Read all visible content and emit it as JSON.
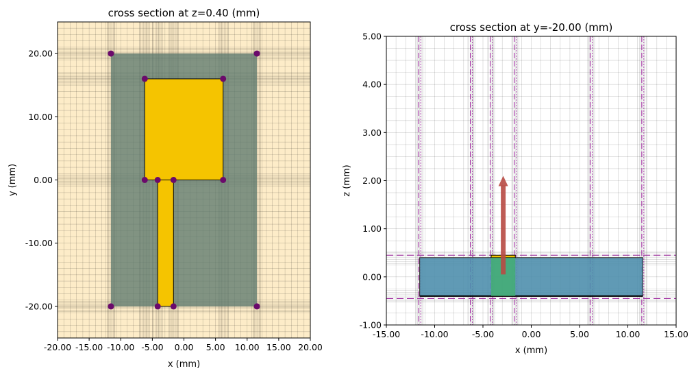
{
  "colors": {
    "substrate_bg": "#fdecc8",
    "ground_plane": "#5e7a6e",
    "patch": "#f5c400",
    "feed": "#f5c400",
    "vertex": "#6b0a6b",
    "substrate_side": "#4f8fad",
    "port_box": "#3fb06b",
    "source_arrow": "#b84a44",
    "pml_lines": "#9b1c9b"
  },
  "chart_data": [
    {
      "type": "diagram",
      "title": "cross section at z=0.40 (mm)",
      "xlabel": "x (mm)",
      "ylabel": "y (mm)",
      "xlim": [
        -20,
        20
      ],
      "ylim": [
        -25,
        25
      ],
      "xticks": [
        -20,
        -15,
        -10,
        -5,
        0,
        5,
        10,
        15,
        20
      ],
      "xtick_labels": [
        "-20.00",
        "-15.00",
        "-10.00",
        "-5.00",
        "0.00",
        "5.00",
        "10.00",
        "15.00",
        "20.00"
      ],
      "yticks": [
        -20,
        -10,
        0,
        10,
        20
      ],
      "ytick_labels": [
        "-20.00",
        "-10.00",
        "0.00",
        "10.00",
        "20.00"
      ],
      "ground_plane": {
        "x": [
          -11.55,
          11.55
        ],
        "y": [
          -20,
          20
        ]
      },
      "patch": {
        "x": [
          -6.2,
          6.2
        ],
        "y": [
          0,
          16
        ]
      },
      "feed_line": {
        "x": [
          -4.15,
          -1.65
        ],
        "y": [
          -20,
          0
        ]
      },
      "vertices": [
        [
          -11.55,
          20
        ],
        [
          11.55,
          20
        ],
        [
          -6.2,
          16
        ],
        [
          6.2,
          16
        ],
        [
          -6.2,
          0
        ],
        [
          -4.15,
          0
        ],
        [
          -1.65,
          0
        ],
        [
          6.2,
          0
        ],
        [
          -11.55,
          -20
        ],
        [
          -4.15,
          -20
        ],
        [
          -1.65,
          -20
        ],
        [
          11.55,
          -20
        ]
      ],
      "grid": true
    },
    {
      "type": "diagram",
      "title": "cross section at y=-20.00 (mm)",
      "xlabel": "x (mm)",
      "ylabel": "z (mm)",
      "xlim": [
        -15,
        15
      ],
      "ylim": [
        -1,
        5
      ],
      "xticks": [
        -15,
        -10,
        -5,
        0,
        5,
        10,
        15
      ],
      "xtick_labels": [
        "-15.00",
        "-10.00",
        "-5.00",
        "0.00",
        "5.00",
        "10.00",
        "15.00"
      ],
      "yticks": [
        -1,
        0,
        1,
        2,
        3,
        4,
        5
      ],
      "ytick_labels": [
        "-1.00",
        "0.00",
        "1.00",
        "2.00",
        "3.00",
        "4.00",
        "5.00"
      ],
      "substrate": {
        "x": [
          -11.55,
          11.55
        ],
        "z": [
          -0.4,
          0.4
        ]
      },
      "feed_strip": {
        "x": [
          -4.15,
          -1.65
        ],
        "z": [
          0.4,
          0.45
        ]
      },
      "port": {
        "x": [
          -4.15,
          -1.65
        ],
        "z": [
          -0.4,
          0.4
        ]
      },
      "source_arrow": {
        "x": -2.9,
        "z_from": 0.05,
        "z_to": 2.1
      },
      "grid": true
    }
  ]
}
